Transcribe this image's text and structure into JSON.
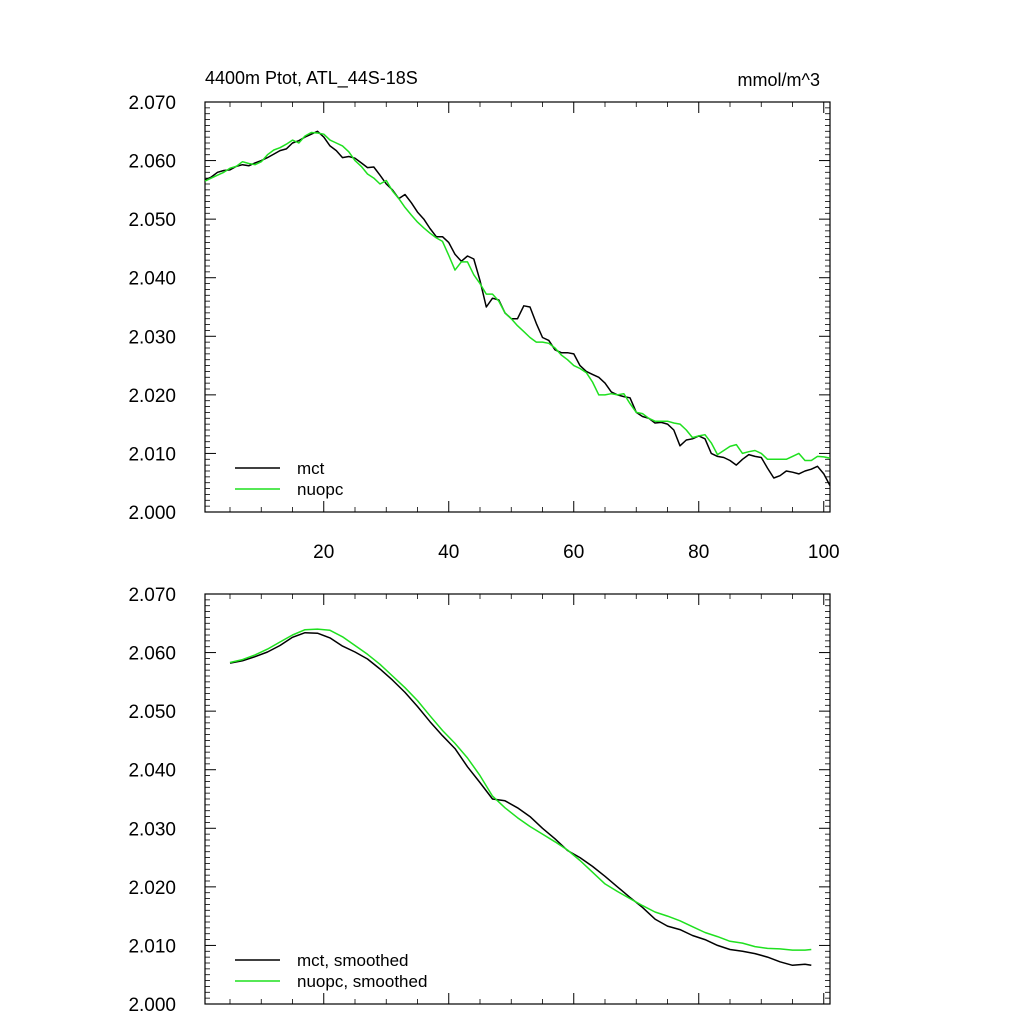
{
  "header": {
    "title": "4400m Ptot, ATL_44S-18S",
    "units": "mmol/m^3"
  },
  "colors": {
    "mct": "#000000",
    "nuopc": "#1fe01f"
  },
  "chart_data": [
    {
      "type": "line",
      "xlim": [
        1,
        101
      ],
      "ylim": [
        2.0,
        2.07
      ],
      "xticks": [
        20,
        40,
        60,
        80,
        100
      ],
      "xtick_labels": [
        "20",
        "40",
        "60",
        "80",
        "100"
      ],
      "yticks": [
        2.0,
        2.01,
        2.02,
        2.03,
        2.04,
        2.05,
        2.06,
        2.07
      ],
      "ytick_labels": [
        "2.000",
        "2.010",
        "2.020",
        "2.030",
        "2.040",
        "2.050",
        "2.060",
        "2.070"
      ],
      "legend_position": "bottom-left",
      "series": [
        {
          "name": "mct",
          "color": "#000000",
          "x": [
            1,
            2,
            3,
            4,
            5,
            6,
            7,
            8,
            9,
            10,
            11,
            12,
            13,
            14,
            15,
            16,
            17,
            18,
            19,
            20,
            21,
            22,
            23,
            24,
            25,
            26,
            27,
            28,
            29,
            30,
            31,
            32,
            33,
            34,
            35,
            36,
            37,
            38,
            39,
            40,
            41,
            42,
            43,
            44,
            45,
            46,
            47,
            48,
            49,
            50,
            51,
            52,
            53,
            54,
            55,
            56,
            57,
            58,
            59,
            60,
            61,
            62,
            63,
            64,
            65,
            66,
            67,
            68,
            69,
            70,
            71,
            72,
            73,
            74,
            75,
            76,
            77,
            78,
            79,
            80,
            81,
            82,
            83,
            84,
            85,
            86,
            87,
            88,
            89,
            90,
            91,
            92,
            93,
            94,
            95,
            96,
            97,
            98,
            99,
            100,
            101
          ],
          "values": [
            2.0567,
            2.0572,
            2.058,
            2.0583,
            2.0584,
            2.059,
            2.0593,
            2.0591,
            2.0596,
            2.06,
            2.0605,
            2.0611,
            2.0617,
            2.062,
            2.063,
            2.0634,
            2.064,
            2.0645,
            2.065,
            2.064,
            2.0625,
            2.0617,
            2.0605,
            2.0607,
            2.0604,
            2.0596,
            2.0588,
            2.0589,
            2.0575,
            2.056,
            2.055,
            2.0535,
            2.0542,
            2.0528,
            2.0512,
            2.05,
            2.0484,
            2.047,
            2.047,
            2.046,
            2.044,
            2.0428,
            2.0437,
            2.0432,
            2.0395,
            2.035,
            2.0365,
            2.0362,
            2.034,
            2.033,
            2.033,
            2.0352,
            2.035,
            2.0322,
            2.0298,
            2.0293,
            2.0277,
            2.0272,
            2.0272,
            2.027,
            2.025,
            2.024,
            2.0235,
            2.023,
            2.022,
            2.0205,
            2.02,
            2.0197,
            2.0195,
            2.017,
            2.0163,
            2.016,
            2.0152,
            2.0153,
            2.015,
            2.014,
            2.0113,
            2.0123,
            2.0125,
            2.013,
            2.0125,
            2.01,
            2.0095,
            2.0093,
            2.0088,
            2.008,
            2.009,
            2.0098,
            2.0095,
            2.0093,
            2.0075,
            2.0058,
            2.0062,
            2.007,
            2.0068,
            2.0065,
            2.007,
            2.0073,
            2.0078,
            2.0065,
            2.0045
          ]
        },
        {
          "name": "nuopc",
          "color": "#1fe01f",
          "x": [
            1,
            2,
            3,
            4,
            5,
            6,
            7,
            8,
            9,
            10,
            11,
            12,
            13,
            14,
            15,
            16,
            17,
            18,
            19,
            20,
            21,
            22,
            23,
            24,
            25,
            26,
            27,
            28,
            29,
            30,
            31,
            32,
            33,
            34,
            35,
            36,
            37,
            38,
            39,
            40,
            41,
            42,
            43,
            44,
            45,
            46,
            47,
            48,
            49,
            50,
            51,
            52,
            53,
            54,
            55,
            56,
            57,
            58,
            59,
            60,
            61,
            62,
            63,
            64,
            65,
            66,
            67,
            68,
            69,
            70,
            71,
            72,
            73,
            74,
            75,
            76,
            77,
            78,
            79,
            80,
            81,
            82,
            83,
            84,
            85,
            86,
            87,
            88,
            89,
            90,
            91,
            92,
            93,
            94,
            95,
            96,
            97,
            98,
            99,
            100,
            101
          ],
          "values": [
            2.0565,
            2.057,
            2.0575,
            2.058,
            2.0587,
            2.059,
            2.0598,
            2.0595,
            2.0593,
            2.0598,
            2.061,
            2.0618,
            2.0622,
            2.0628,
            2.0635,
            2.063,
            2.0642,
            2.0648,
            2.0647,
            2.0645,
            2.0635,
            2.063,
            2.0625,
            2.0615,
            2.06,
            2.059,
            2.0577,
            2.057,
            2.056,
            2.0566,
            2.0548,
            2.0535,
            2.052,
            2.0507,
            2.0495,
            2.0485,
            2.0476,
            2.0468,
            2.0462,
            2.0438,
            2.0413,
            2.0427,
            2.0427,
            2.0405,
            2.039,
            2.0372,
            2.0372,
            2.036,
            2.034,
            2.033,
            2.0318,
            2.0308,
            2.0298,
            2.029,
            2.029,
            2.0288,
            2.028,
            2.0268,
            2.026,
            2.025,
            2.0245,
            2.0238,
            2.0222,
            2.02,
            2.02,
            2.0202,
            2.02,
            2.0202,
            2.0185,
            2.017,
            2.0168,
            2.016,
            2.0155,
            2.0155,
            2.0155,
            2.0152,
            2.015,
            2.014,
            2.0127,
            2.013,
            2.0132,
            2.0118,
            2.0098,
            2.0105,
            2.0112,
            2.0115,
            2.01,
            2.0103,
            2.0105,
            2.01,
            2.009,
            2.009,
            2.009,
            2.009,
            2.0095,
            2.01,
            2.0088,
            2.0088,
            2.0095,
            2.0094,
            2.0092
          ]
        }
      ]
    },
    {
      "type": "line",
      "xlim": [
        1,
        101
      ],
      "ylim": [
        2.0,
        2.07
      ],
      "xticks": [
        20,
        40,
        60,
        80,
        100
      ],
      "yticks": [
        2.0,
        2.01,
        2.02,
        2.03,
        2.04,
        2.05,
        2.06,
        2.07
      ],
      "ytick_labels": [
        "2.000",
        "2.010",
        "2.020",
        "2.030",
        "2.040",
        "2.050",
        "2.060",
        "2.070"
      ],
      "legend_position": "bottom-left",
      "series": [
        {
          "name": "mct, smoothed",
          "color": "#000000",
          "x": [
            5,
            7,
            9,
            11,
            13,
            15,
            17,
            19,
            21,
            23,
            25,
            27,
            29,
            31,
            33,
            35,
            37,
            39,
            41,
            43,
            45,
            47,
            49,
            51,
            53,
            55,
            57,
            59,
            61,
            63,
            65,
            67,
            69,
            71,
            73,
            75,
            77,
            79,
            81,
            83,
            85,
            87,
            89,
            91,
            93,
            95,
            97,
            98
          ],
          "values": [
            2.0582,
            2.0586,
            2.0593,
            2.0601,
            2.0612,
            2.0626,
            2.0634,
            2.0633,
            2.0625,
            2.0611,
            2.0601,
            2.0589,
            2.0572,
            2.0553,
            2.0532,
            2.0508,
            2.0482,
            2.0458,
            2.0436,
            2.0405,
            2.0378,
            2.035,
            2.0347,
            2.0335,
            2.032,
            2.03,
            2.0282,
            2.0262,
            2.025,
            2.0235,
            2.0218,
            2.02,
            2.0182,
            2.0165,
            2.0145,
            2.0133,
            2.0127,
            2.0117,
            2.011,
            2.01,
            2.0093,
            2.009,
            2.0086,
            2.008,
            2.0072,
            2.0066,
            2.0068,
            2.0066
          ]
        },
        {
          "name": "nuopc, smoothed",
          "color": "#1fe01f",
          "x": [
            5,
            7,
            9,
            11,
            13,
            15,
            17,
            19,
            21,
            23,
            25,
            27,
            29,
            31,
            33,
            35,
            37,
            39,
            41,
            43,
            45,
            47,
            49,
            51,
            53,
            55,
            57,
            59,
            61,
            63,
            65,
            67,
            69,
            71,
            73,
            75,
            77,
            79,
            81,
            83,
            85,
            87,
            89,
            91,
            93,
            95,
            97,
            98
          ],
          "values": [
            2.0583,
            2.0588,
            2.0596,
            2.0606,
            2.0618,
            2.063,
            2.0639,
            2.064,
            2.0638,
            2.0627,
            2.0612,
            2.0597,
            2.058,
            2.056,
            2.054,
            2.0518,
            2.0492,
            2.0467,
            2.0445,
            2.042,
            2.039,
            2.0355,
            2.0335,
            2.0318,
            2.0303,
            2.029,
            2.0277,
            2.0263,
            2.0245,
            2.0225,
            2.0205,
            2.0192,
            2.018,
            2.0168,
            2.0157,
            2.015,
            2.0142,
            2.0132,
            2.0122,
            2.0115,
            2.0107,
            2.0104,
            2.0098,
            2.0095,
            2.0094,
            2.0092,
            2.0092,
            2.0093
          ]
        }
      ]
    }
  ]
}
